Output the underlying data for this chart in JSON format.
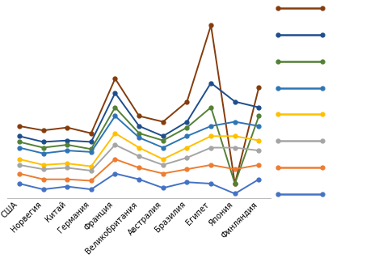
{
  "categories": [
    "США",
    "Норвегия",
    "Китай",
    "Германия",
    "Франция",
    "Великобритания",
    "Австралия",
    "Бразилия",
    "Египет",
    "Япония",
    "Финляндия"
  ],
  "series": [
    {
      "color": "#843c0c",
      "values": [
        6.5,
        6.2,
        6.4,
        6.0,
        9.8,
        7.2,
        6.8,
        8.2,
        13.5,
        2.5,
        9.2
      ]
    },
    {
      "color": "#1f4e8c",
      "values": [
        5.8,
        5.4,
        5.5,
        5.4,
        8.8,
        6.5,
        5.8,
        6.8,
        9.5,
        8.2,
        7.8
      ]
    },
    {
      "color": "#538135",
      "values": [
        5.4,
        5.0,
        5.2,
        4.9,
        7.8,
        6.0,
        5.5,
        6.4,
        7.8,
        2.5,
        7.2
      ]
    },
    {
      "color": "#2e75b6",
      "values": [
        5.0,
        4.6,
        4.8,
        4.7,
        7.2,
        5.7,
        5.0,
        5.8,
        6.5,
        6.8,
        6.5
      ]
    },
    {
      "color": "#ffc000",
      "values": [
        4.2,
        3.8,
        3.9,
        3.7,
        6.0,
        5.0,
        4.2,
        5.0,
        5.8,
        5.8,
        5.5
      ]
    },
    {
      "color": "#a5a5a5",
      "values": [
        3.8,
        3.5,
        3.6,
        3.4,
        5.2,
        4.4,
        3.8,
        4.3,
        5.0,
        5.0,
        4.8
      ]
    },
    {
      "color": "#ed7d31",
      "values": [
        3.2,
        2.8,
        2.8,
        2.7,
        4.2,
        3.6,
        3.2,
        3.5,
        3.8,
        3.5,
        3.8
      ]
    },
    {
      "color": "#4472c4",
      "values": [
        2.5,
        2.1,
        2.3,
        2.1,
        3.2,
        2.8,
        2.2,
        2.6,
        2.5,
        1.8,
        2.8
      ]
    }
  ],
  "ylim": [
    1.5,
    14.5
  ],
  "grid_color": "#d9d9d9",
  "background_color": "#ffffff",
  "label_fontsize": 7,
  "marker_size": 3.5,
  "line_width": 1.4,
  "legend_colors": [
    "#843c0c",
    "#1f4e8c",
    "#538135",
    "#2e75b6",
    "#ffc000",
    "#a5a5a5",
    "#ed7d31",
    "#4472c4"
  ]
}
